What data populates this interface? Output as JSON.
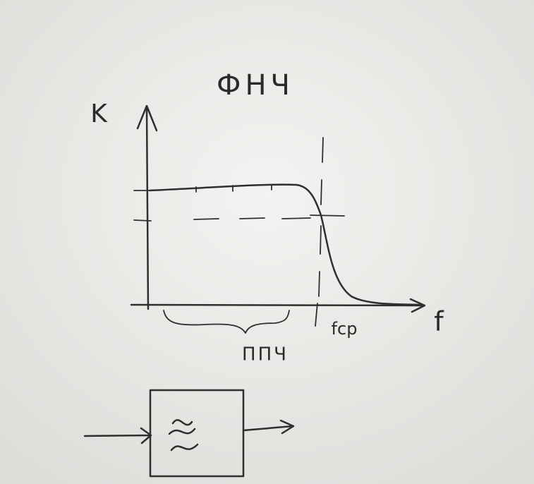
{
  "title": "ФНЧ",
  "axes": {
    "y_label": "K",
    "x_label": "f"
  },
  "annotations": {
    "cutoff": "fср",
    "passband": "ППЧ"
  }
}
